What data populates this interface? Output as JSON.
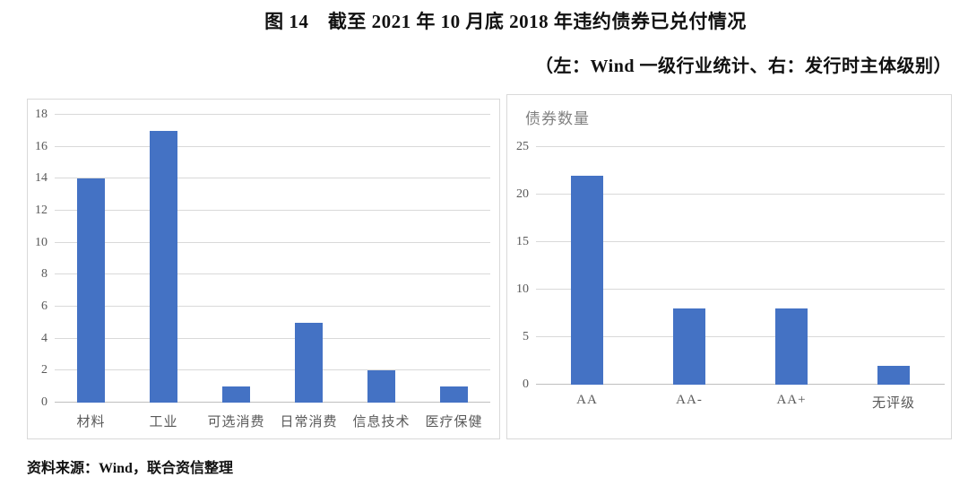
{
  "figure": {
    "title": "图 14　截至 2021 年 10 月底 2018 年违约债券已兑付情况",
    "subtitle": "（左：Wind 一级行业统计、右：发行时主体级别）",
    "source": "资料来源：Wind，联合资信整理"
  },
  "colors": {
    "bar": "#4472c4",
    "gridline": "#d9d9d9",
    "axis_line": "#bfbfbf",
    "axis_text": "#595959",
    "panel_border": "#d9d9d9",
    "chart_title": "#808080"
  },
  "chart_data": [
    {
      "type": "bar",
      "title": "",
      "categories": [
        "材料",
        "工业",
        "可选消费",
        "日常消费",
        "信息技术",
        "医疗保健"
      ],
      "values": [
        14,
        17,
        1,
        5,
        2,
        1
      ],
      "xlabel": "",
      "ylabel": "",
      "ylim": [
        0,
        18
      ],
      "yticks": [
        0,
        2,
        4,
        6,
        8,
        10,
        12,
        14,
        16,
        18
      ],
      "grid": true,
      "legend": "none"
    },
    {
      "type": "bar",
      "title": "债券数量",
      "categories": [
        "AA",
        "AA-",
        "AA+",
        "无评级"
      ],
      "values": [
        22,
        8,
        8,
        2
      ],
      "xlabel": "",
      "ylabel": "",
      "ylim": [
        0,
        25
      ],
      "yticks": [
        0,
        5,
        10,
        15,
        20,
        25
      ],
      "grid": true,
      "legend": "none"
    }
  ]
}
